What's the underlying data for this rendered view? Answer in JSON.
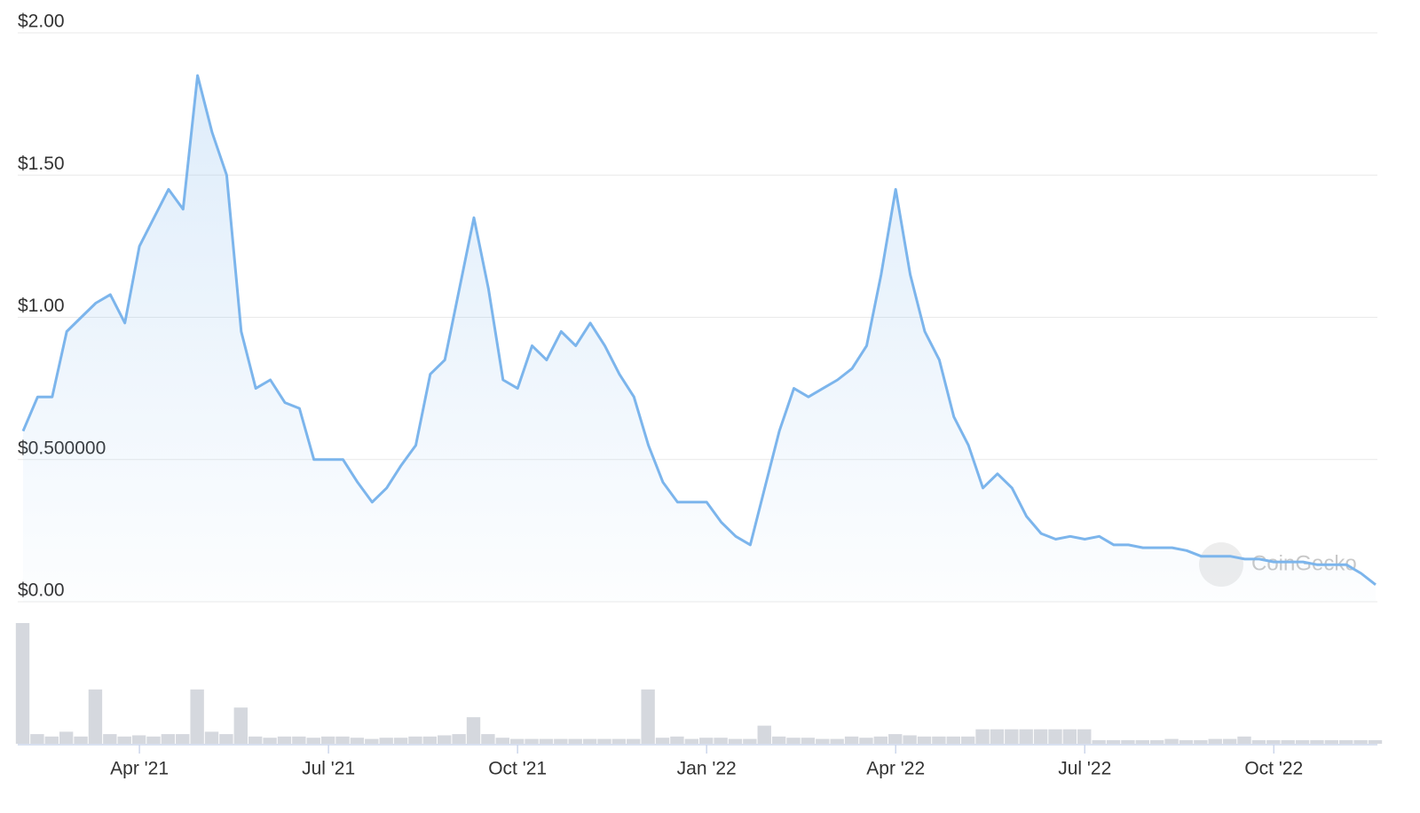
{
  "chart_data": {
    "type": "line",
    "categories": [
      null,
      null,
      null,
      null,
      null,
      null,
      null,
      null,
      "Apr '21",
      null,
      null,
      null,
      null,
      null,
      null,
      null,
      null,
      null,
      null,
      null,
      null,
      "Jul '21",
      null,
      null,
      null,
      null,
      null,
      null,
      null,
      null,
      null,
      null,
      null,
      null,
      "Oct '21",
      null,
      null,
      null,
      null,
      null,
      null,
      null,
      null,
      null,
      null,
      null,
      null,
      "Jan '22",
      null,
      null,
      null,
      null,
      null,
      null,
      null,
      null,
      null,
      null,
      null,
      null,
      "Apr '22",
      null,
      null,
      null,
      null,
      null,
      null,
      null,
      null,
      null,
      null,
      null,
      null,
      "Jul '22",
      null,
      null,
      null,
      null,
      null,
      null,
      null,
      null,
      null,
      null,
      null,
      null,
      "Oct '22",
      null,
      null,
      null,
      null,
      null,
      null,
      null
    ],
    "values": [
      0.6,
      0.72,
      0.72,
      0.95,
      1.0,
      1.05,
      1.08,
      0.98,
      1.25,
      1.35,
      1.45,
      1.38,
      1.85,
      1.65,
      1.5,
      0.95,
      0.75,
      0.78,
      0.7,
      0.68,
      0.5,
      0.5,
      0.5,
      0.42,
      0.35,
      0.4,
      0.48,
      0.55,
      0.8,
      0.85,
      1.1,
      1.35,
      1.1,
      0.78,
      0.75,
      0.9,
      0.85,
      0.95,
      0.9,
      0.98,
      0.9,
      0.8,
      0.72,
      0.55,
      0.42,
      0.35,
      0.35,
      0.35,
      0.28,
      0.23,
      0.2,
      0.4,
      0.6,
      0.75,
      0.72,
      0.75,
      0.78,
      0.82,
      0.9,
      1.15,
      1.45,
      1.15,
      0.95,
      0.85,
      0.65,
      0.55,
      0.4,
      0.45,
      0.4,
      0.3,
      0.24,
      0.22,
      0.23,
      0.22,
      0.23,
      0.2,
      0.2,
      0.19,
      0.19,
      0.19,
      0.18,
      0.16,
      0.16,
      0.16,
      0.15,
      0.15,
      0.14,
      0.14,
      0.14,
      0.13,
      0.13,
      0.13,
      0.1,
      0.06
    ],
    "color": "#7cb5ec",
    "volume": [
      100,
      8,
      6,
      10,
      6,
      45,
      8,
      6,
      7,
      6,
      8,
      8,
      45,
      10,
      8,
      30,
      6,
      5,
      6,
      6,
      5,
      6,
      6,
      5,
      4,
      5,
      5,
      6,
      6,
      7,
      8,
      22,
      8,
      5,
      4,
      4,
      4,
      4,
      4,
      4,
      4,
      4,
      4,
      45,
      5,
      6,
      4,
      5,
      5,
      4,
      4,
      15,
      6,
      5,
      5,
      4,
      4,
      6,
      5,
      6,
      8,
      7,
      6,
      6,
      6,
      6,
      12,
      12,
      12,
      12,
      12,
      12,
      12,
      12,
      3,
      3,
      3,
      3,
      3,
      4,
      3,
      3,
      4,
      4,
      6,
      3,
      3,
      3,
      3,
      3,
      3,
      3,
      3,
      3
    ],
    "volume_color": "#d5d8de",
    "ylim": [
      0,
      2
    ],
    "yticks": [
      {
        "value": 0,
        "label": "$0.00"
      },
      {
        "value": 0.5,
        "label": "$0.500000"
      },
      {
        "value": 1,
        "label": "$1.00"
      },
      {
        "value": 1.5,
        "label": "$1.50"
      },
      {
        "value": 2,
        "label": "$2.00"
      }
    ],
    "grid": true,
    "watermark": "CoinGecko"
  }
}
